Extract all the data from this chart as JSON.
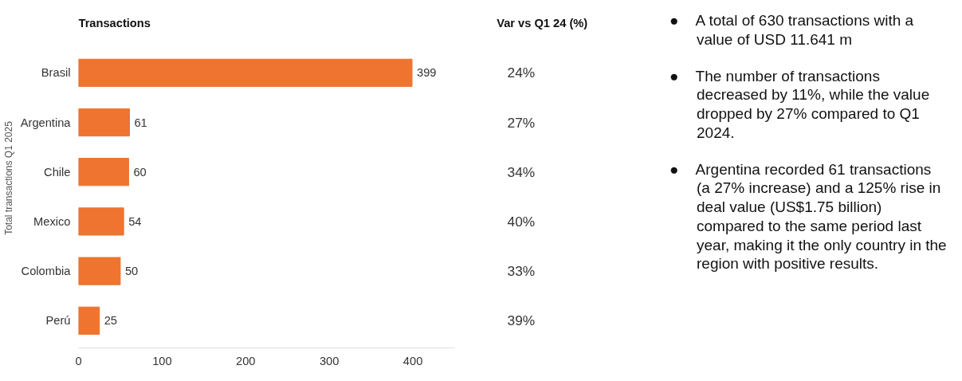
{
  "chart_data": {
    "type": "bar",
    "orientation": "horizontal",
    "title": "Transactions",
    "ylabel": "Total transactions Q1 2025",
    "categories": [
      "Brasil",
      "Argentina",
      "Chile",
      "Mexico",
      "Colombia",
      "Perú"
    ],
    "values": [
      399,
      61,
      60,
      54,
      50,
      25
    ],
    "color": "#ee7430",
    "xlim": [
      0,
      450
    ],
    "xticks": [
      0,
      100,
      200,
      300,
      400
    ],
    "grid": false,
    "data_labels": true,
    "annotations": [
      "Var vs Q1 24 (%)",
      "24%",
      "27%",
      "34%",
      "40%",
      "33%",
      "39%",
      "● A total of 630 transactions with a value of USD 11.641 m",
      "● The number of transactions decreased by 11%, while the value dropped by 27% compared to Q1  2024.",
      "● Argentina recorded 61 transactions (a 27% increase) and a 125% rise in deal value (US$1.75 billion) compared to the same period last year, making it the only country in the region with positive results."
    ]
  }
}
